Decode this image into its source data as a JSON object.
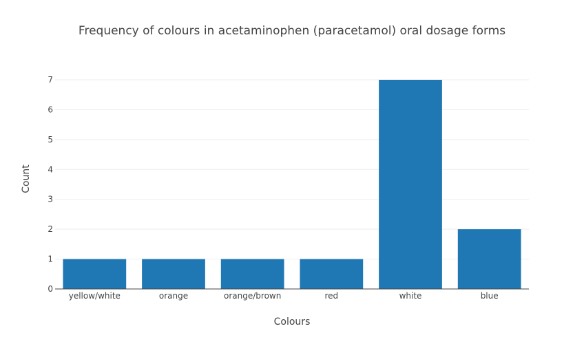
{
  "chart_data": {
    "type": "bar",
    "title": "Frequency of colours in acetaminophen (paracetamol) oral dosage forms",
    "xlabel": "Colours",
    "ylabel": "Count",
    "categories": [
      "yellow/white",
      "orange",
      "orange/brown",
      "red",
      "white",
      "blue"
    ],
    "values": [
      1,
      1,
      1,
      1,
      7,
      2
    ],
    "ylim": [
      0,
      7
    ],
    "yticks": [
      0,
      1,
      2,
      3,
      4,
      5,
      6,
      7
    ],
    "grid": true,
    "legend": false,
    "bar_color": "#1f77b4"
  }
}
